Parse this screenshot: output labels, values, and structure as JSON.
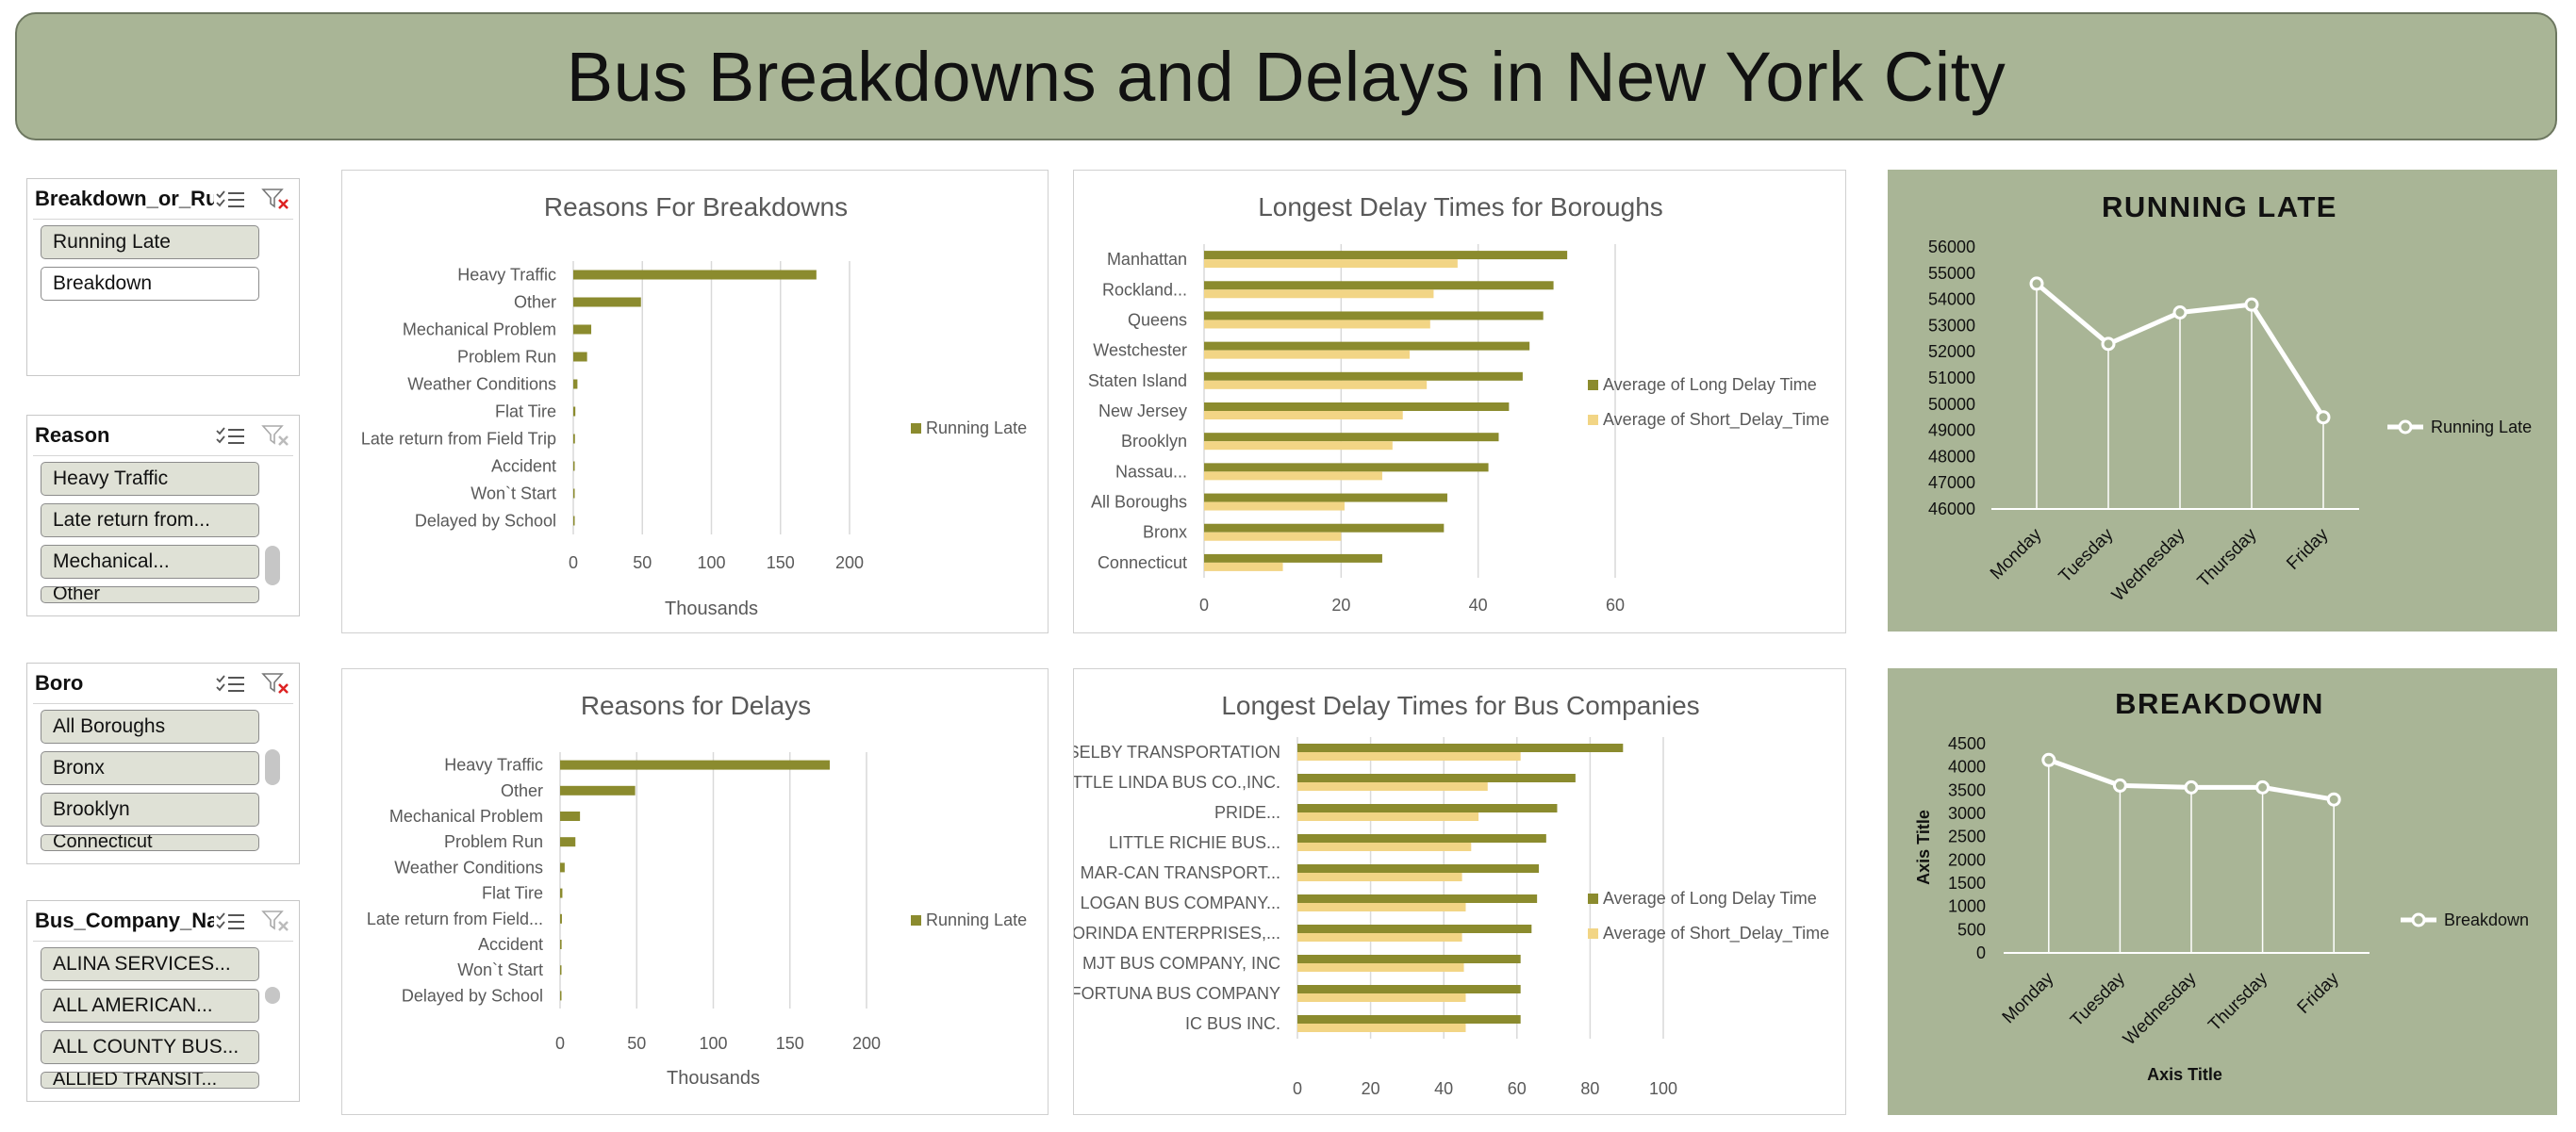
{
  "title": "Bus Breakdowns and Delays in New York City",
  "slicers": [
    {
      "title": "Breakdown_or_Run...",
      "items": [
        {
          "label": "Running Late",
          "selected": true
        },
        {
          "label": "Breakdown",
          "selected": false
        }
      ]
    },
    {
      "title": "Reason",
      "items": [
        {
          "label": "Heavy Traffic",
          "selected": true
        },
        {
          "label": "Late return from...",
          "selected": true
        },
        {
          "label": "Mechanical...",
          "selected": true
        },
        {
          "label": "Other",
          "selected": true
        }
      ]
    },
    {
      "title": "Boro",
      "items": [
        {
          "label": "All Boroughs",
          "selected": true
        },
        {
          "label": "Bronx",
          "selected": true
        },
        {
          "label": "Brooklyn",
          "selected": true
        },
        {
          "label": "Connecticut",
          "selected": true
        }
      ]
    },
    {
      "title": "Bus_Company_Name",
      "items": [
        {
          "label": "ALINA SERVICES...",
          "selected": true
        },
        {
          "label": "ALL AMERICAN...",
          "selected": true
        },
        {
          "label": "ALL COUNTY BUS...",
          "selected": true
        },
        {
          "label": "ALLIED TRANSIT...",
          "selected": true
        }
      ]
    }
  ],
  "colors": {
    "olive": "#8b8b2e",
    "tan": "#f2d585",
    "white_line": "#ffffff",
    "panel_green": "#a9b596"
  },
  "chart_data": [
    {
      "id": "reasons-breakdowns",
      "type": "bar",
      "orientation": "horizontal",
      "title": "Reasons For Breakdowns",
      "categories": [
        "Heavy Traffic",
        "Other",
        "Mechanical Problem",
        "Problem Run",
        "Weather Conditions",
        "Flat Tire",
        "Late return from Field Trip",
        "Accident",
        "Won`t Start",
        "Delayed by School"
      ],
      "series": [
        {
          "name": "Running Late",
          "values": [
            176,
            49,
            13,
            10,
            3,
            1.5,
            1.2,
            1,
            0.8,
            0.5
          ]
        }
      ],
      "xlabel": "Thousands",
      "xlim": [
        0,
        200
      ],
      "xticks": [
        0,
        50,
        100,
        150,
        200
      ],
      "grid": true,
      "legend": "right"
    },
    {
      "id": "delay-boroughs",
      "type": "bar",
      "orientation": "horizontal",
      "title": "Longest Delay Times for Boroughs",
      "categories": [
        "Manhattan",
        "Rockland...",
        "Queens",
        "Westchester",
        "Staten Island",
        "New Jersey",
        "Brooklyn",
        "Nassau...",
        "All Boroughs",
        "Bronx",
        "Connecticut"
      ],
      "series": [
        {
          "name": "Average of Long Delay Time",
          "values": [
            53,
            51,
            49.5,
            47.5,
            46.5,
            44.5,
            43,
            41.5,
            35.5,
            35,
            26
          ]
        },
        {
          "name": "Average of Short_Delay_Time",
          "values": [
            37,
            33.5,
            33,
            30,
            32.5,
            29,
            27.5,
            26,
            20.5,
            20,
            11.5
          ]
        }
      ],
      "xlim": [
        0,
        60
      ],
      "xticks": [
        0,
        20,
        40,
        60
      ],
      "grid": true,
      "legend": "right"
    },
    {
      "id": "running-late-line",
      "type": "line",
      "title": "RUNNING LATE",
      "categories": [
        "Monday",
        "Tuesday",
        "Wednesday",
        "Thursday",
        "Friday"
      ],
      "series": [
        {
          "name": "Running Late",
          "values": [
            54600,
            52300,
            53500,
            53800,
            49500
          ]
        }
      ],
      "ylim": [
        46000,
        56000
      ],
      "yticks": [
        46000,
        47000,
        48000,
        49000,
        50000,
        51000,
        52000,
        53000,
        54000,
        55000,
        56000
      ],
      "legend": "right"
    },
    {
      "id": "reasons-delays",
      "type": "bar",
      "orientation": "horizontal",
      "title": "Reasons for Delays",
      "categories": [
        "Heavy Traffic",
        "Other",
        "Mechanical Problem",
        "Problem Run",
        "Weather Conditions",
        "Flat Tire",
        "Late return from Field...",
        "Accident",
        "Won`t Start",
        "Delayed by School"
      ],
      "series": [
        {
          "name": "Running Late",
          "values": [
            176,
            49,
            13,
            10,
            3,
            1.5,
            1.2,
            1,
            0.8,
            0.5
          ]
        }
      ],
      "xlabel": "Thousands",
      "xlim": [
        0,
        200
      ],
      "xticks": [
        0,
        50,
        100,
        150,
        200
      ],
      "grid": true,
      "legend": "right"
    },
    {
      "id": "delay-companies",
      "type": "bar",
      "orientation": "horizontal",
      "title": "Longest Delay Times for Bus Companies",
      "categories": [
        "SELBY TRANSPORTATION",
        "LITTLE LINDA BUS CO.,INC.",
        "PRIDE...",
        "LITTLE RICHIE BUS...",
        "MAR-CAN TRANSPORT...",
        "LOGAN BUS COMPANY...",
        "LORINDA ENTERPRISES,...",
        "MJT BUS COMPANY, INC",
        "FORTUNA BUS COMPANY",
        "IC BUS INC."
      ],
      "series": [
        {
          "name": "Average of Long Delay Time",
          "values": [
            89,
            76,
            71,
            68,
            66,
            65.5,
            64,
            61,
            61,
            61
          ]
        },
        {
          "name": "Average of Short_Delay_Time",
          "values": [
            61,
            52,
            49.5,
            47.5,
            45,
            46,
            45,
            45.5,
            46,
            46
          ]
        }
      ],
      "xlim": [
        0,
        100
      ],
      "xticks": [
        0,
        20,
        40,
        60,
        80,
        100
      ],
      "grid": true,
      "legend": "right"
    },
    {
      "id": "breakdown-line",
      "type": "line",
      "title": "BREAKDOWN",
      "categories": [
        "Monday",
        "Tuesday",
        "Wednesday",
        "Thursday",
        "Friday"
      ],
      "series": [
        {
          "name": "Breakdown",
          "values": [
            4150,
            3600,
            3560,
            3560,
            3300
          ]
        }
      ],
      "ylim": [
        0,
        4500
      ],
      "yticks": [
        0,
        500,
        1000,
        1500,
        2000,
        2500,
        3000,
        3500,
        4000,
        4500
      ],
      "xlabel": "Axis Title",
      "ylabel": "Axis Title",
      "legend": "right"
    }
  ]
}
